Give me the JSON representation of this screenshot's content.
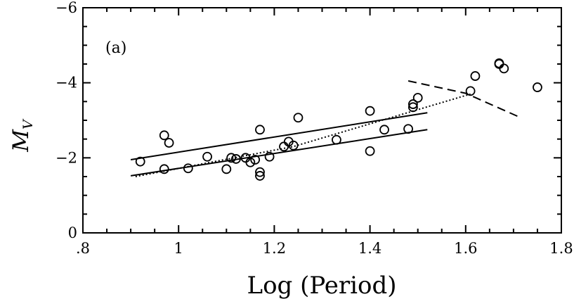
{
  "chart_data": {
    "type": "scatter",
    "panel_label": "(a)",
    "xlabel": "Log (Period)",
    "ylabel": "M",
    "ylabel_sub": "V",
    "xlim": [
      0.8,
      1.8
    ],
    "ylim": [
      0,
      -6
    ],
    "x_ticks": [
      {
        "value": 0.8,
        "label": ".8"
      },
      {
        "value": 1.0,
        "label": "1"
      },
      {
        "value": 1.2,
        "label": "1.2"
      },
      {
        "value": 1.4,
        "label": "1.4"
      },
      {
        "value": 1.6,
        "label": "1.6"
      },
      {
        "value": 1.8,
        "label": "1.8"
      }
    ],
    "y_ticks": [
      {
        "value": 0,
        "label": "0"
      },
      {
        "value": -2,
        "label": "−2"
      },
      {
        "value": -4,
        "label": "−4"
      },
      {
        "value": -6,
        "label": "−6"
      }
    ],
    "x_minor_step": 0.05,
    "y_minor_step": 0.5,
    "grid": false,
    "points": [
      {
        "x": 0.92,
        "y": -1.9
      },
      {
        "x": 0.97,
        "y": -1.7
      },
      {
        "x": 0.97,
        "y": -2.6
      },
      {
        "x": 0.98,
        "y": -2.4
      },
      {
        "x": 1.02,
        "y": -1.72
      },
      {
        "x": 1.06,
        "y": -2.03
      },
      {
        "x": 1.1,
        "y": -1.7
      },
      {
        "x": 1.11,
        "y": -2.0
      },
      {
        "x": 1.12,
        "y": -1.97
      },
      {
        "x": 1.14,
        "y": -2.0
      },
      {
        "x": 1.15,
        "y": -1.88
      },
      {
        "x": 1.16,
        "y": -1.95
      },
      {
        "x": 1.17,
        "y": -2.75
      },
      {
        "x": 1.17,
        "y": -1.62
      },
      {
        "x": 1.17,
        "y": -1.52
      },
      {
        "x": 1.19,
        "y": -2.03
      },
      {
        "x": 1.22,
        "y": -2.3
      },
      {
        "x": 1.23,
        "y": -2.43
      },
      {
        "x": 1.24,
        "y": -2.33
      },
      {
        "x": 1.25,
        "y": -3.07
      },
      {
        "x": 1.33,
        "y": -2.48
      },
      {
        "x": 1.4,
        "y": -3.25
      },
      {
        "x": 1.4,
        "y": -2.18
      },
      {
        "x": 1.43,
        "y": -2.75
      },
      {
        "x": 1.48,
        "y": -2.77
      },
      {
        "x": 1.49,
        "y": -3.35
      },
      {
        "x": 1.49,
        "y": -3.43
      },
      {
        "x": 1.5,
        "y": -3.6
      },
      {
        "x": 1.61,
        "y": -3.78
      },
      {
        "x": 1.62,
        "y": -4.18
      },
      {
        "x": 1.67,
        "y": -4.52
      },
      {
        "x": 1.67,
        "y": -4.5
      },
      {
        "x": 1.68,
        "y": -4.38
      },
      {
        "x": 1.75,
        "y": -3.88
      }
    ],
    "lines": [
      {
        "style": "solid",
        "points": [
          [
            0.9,
            -1.95
          ],
          [
            1.52,
            -3.2
          ]
        ]
      },
      {
        "style": "solid",
        "points": [
          [
            0.9,
            -1.52
          ],
          [
            1.52,
            -2.75
          ]
        ]
      },
      {
        "style": "dotted",
        "points": [
          [
            0.91,
            -1.5
          ],
          [
            1.24,
            -2.3
          ],
          [
            1.61,
            -3.7
          ]
        ]
      },
      {
        "style": "dashed",
        "points": [
          [
            1.48,
            -4.05
          ],
          [
            1.6,
            -3.72
          ],
          [
            1.71,
            -3.1
          ]
        ]
      }
    ]
  }
}
